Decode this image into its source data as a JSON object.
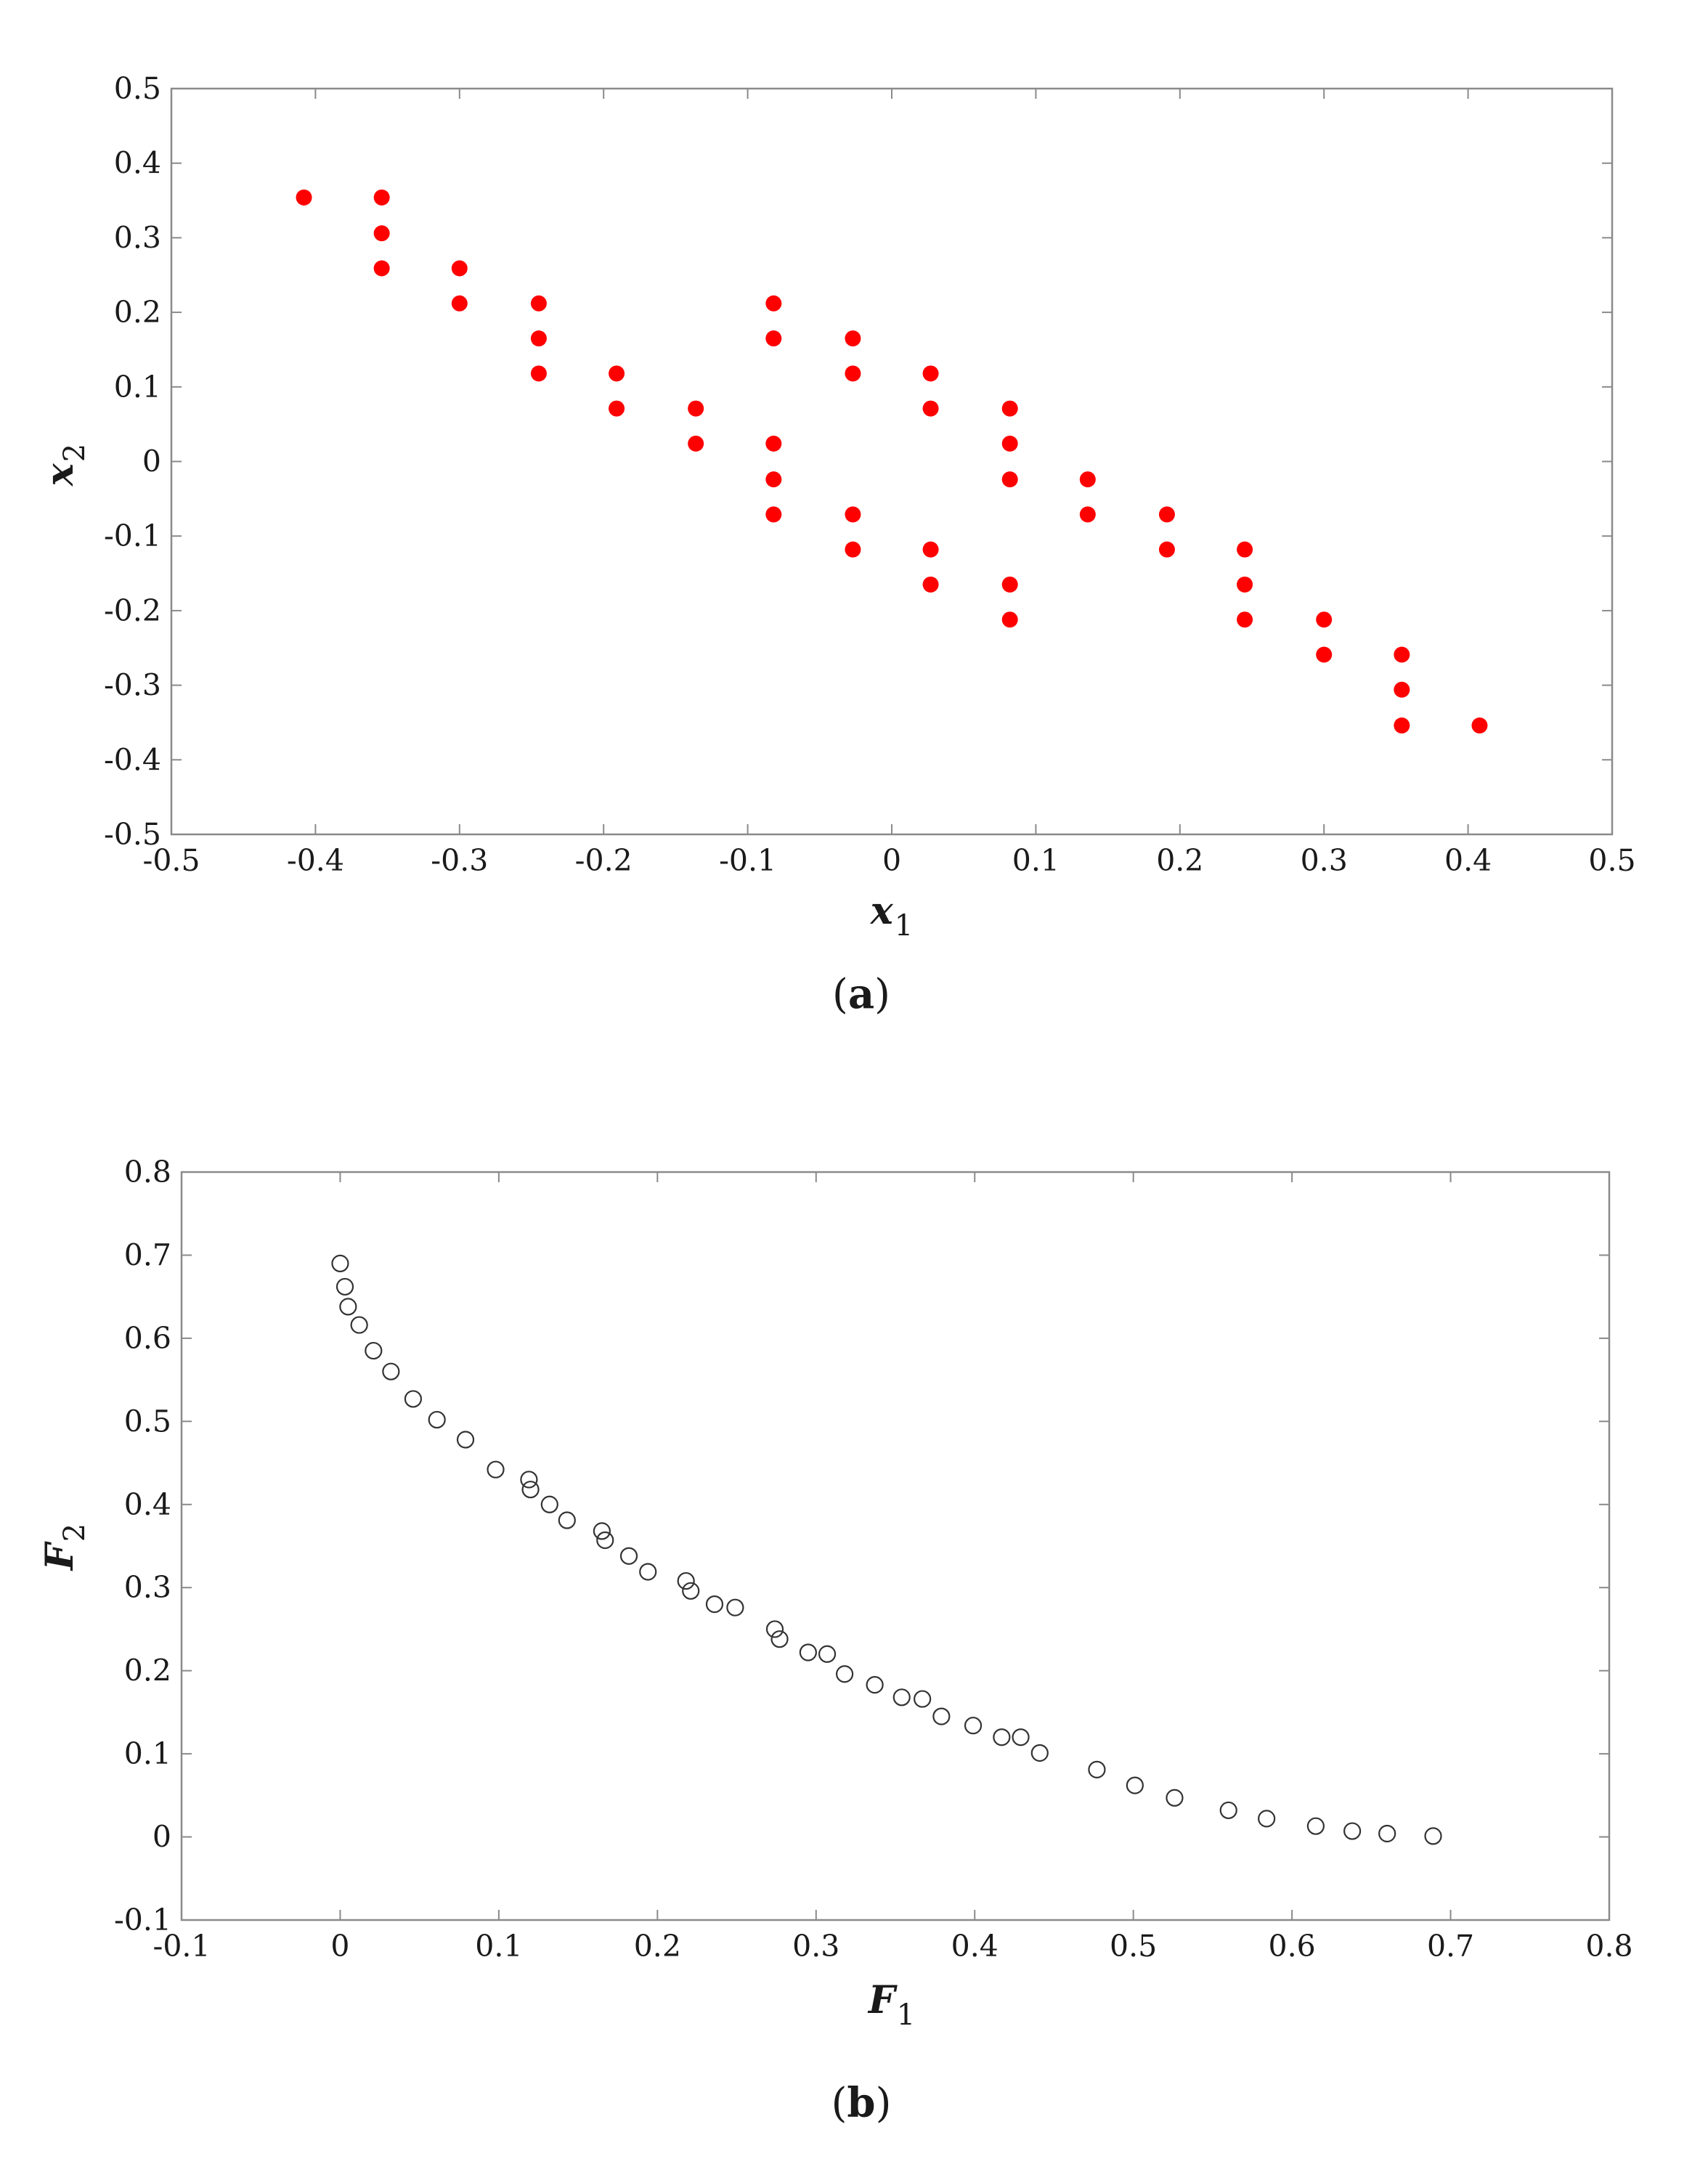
{
  "chart_data": [
    {
      "type": "scatter",
      "panel_label": "a",
      "xlabel": "x",
      "xlabel_sub": "1",
      "ylabel": "x",
      "ylabel_sub": "2",
      "xlim": [
        -0.5,
        0.5
      ],
      "ylim": [
        -0.5,
        0.5
      ],
      "xticks": [
        -0.5,
        -0.4,
        -0.3,
        -0.2,
        -0.1,
        0,
        0.1,
        0.2,
        0.3,
        0.4,
        0.5
      ],
      "yticks": [
        -0.5,
        -0.4,
        -0.3,
        -0.2,
        -0.1,
        0,
        0.1,
        0.2,
        0.3,
        0.4,
        0.5
      ],
      "xtick_labels": [
        "-0.5",
        "-0.4",
        "-0.3",
        "-0.2",
        "-0.1",
        "0",
        "0.1",
        "0.2",
        "0.3",
        "0.4",
        "0.5"
      ],
      "ytick_labels": [
        "-0.5",
        "-0.4",
        "-0.3",
        "-0.2",
        "-0.1",
        "0",
        "0.1",
        "0.2",
        "0.3",
        "0.4",
        "0.5"
      ],
      "grid": false,
      "marker": "filled-circle",
      "marker_color": "#ff0000",
      "points": [
        [
          -0.408,
          0.354
        ],
        [
          -0.354,
          0.354
        ],
        [
          -0.354,
          0.306
        ],
        [
          -0.354,
          0.259
        ],
        [
          -0.3,
          0.259
        ],
        [
          -0.3,
          0.212
        ],
        [
          -0.245,
          0.212
        ],
        [
          -0.245,
          0.165
        ],
        [
          -0.245,
          0.118
        ],
        [
          -0.191,
          0.118
        ],
        [
          -0.191,
          0.071
        ],
        [
          -0.136,
          0.071
        ],
        [
          -0.136,
          0.024
        ],
        [
          -0.082,
          0.212
        ],
        [
          -0.082,
          0.165
        ],
        [
          -0.082,
          0.024
        ],
        [
          -0.082,
          -0.024
        ],
        [
          -0.082,
          -0.071
        ],
        [
          -0.027,
          0.165
        ],
        [
          -0.027,
          0.118
        ],
        [
          -0.027,
          -0.071
        ],
        [
          -0.027,
          -0.118
        ],
        [
          0.027,
          0.118
        ],
        [
          0.027,
          0.071
        ],
        [
          0.027,
          -0.118
        ],
        [
          0.027,
          -0.165
        ],
        [
          0.082,
          0.071
        ],
        [
          0.082,
          0.024
        ],
        [
          0.082,
          -0.024
        ],
        [
          0.082,
          -0.165
        ],
        [
          0.082,
          -0.212
        ],
        [
          0.136,
          -0.024
        ],
        [
          0.136,
          -0.071
        ],
        [
          0.191,
          -0.071
        ],
        [
          0.191,
          -0.118
        ],
        [
          0.245,
          -0.118
        ],
        [
          0.245,
          -0.165
        ],
        [
          0.245,
          -0.212
        ],
        [
          0.3,
          -0.212
        ],
        [
          0.3,
          -0.259
        ],
        [
          0.354,
          -0.259
        ],
        [
          0.354,
          -0.306
        ],
        [
          0.354,
          -0.354
        ],
        [
          0.408,
          -0.354
        ]
      ]
    },
    {
      "type": "scatter",
      "panel_label": "b",
      "xlabel": "F",
      "xlabel_sub": "1",
      "ylabel": "F",
      "ylabel_sub": "2",
      "xlim": [
        -0.1,
        0.8
      ],
      "ylim": [
        -0.1,
        0.8
      ],
      "xticks": [
        -0.1,
        0,
        0.1,
        0.2,
        0.3,
        0.4,
        0.5,
        0.6,
        0.7,
        0.8
      ],
      "yticks": [
        -0.1,
        0,
        0.1,
        0.2,
        0.3,
        0.4,
        0.5,
        0.6,
        0.7,
        0.8
      ],
      "xtick_labels": [
        "-0.1",
        "0",
        "0.1",
        "0.2",
        "0.3",
        "0.4",
        "0.5",
        "0.6",
        "0.7",
        "0.8"
      ],
      "ytick_labels": [
        "-0.1",
        "0",
        "0.1",
        "0.2",
        "0.3",
        "0.4",
        "0.5",
        "0.6",
        "0.7",
        "0.8"
      ],
      "grid": false,
      "marker": "open-circle",
      "marker_color": "#333333",
      "points": [
        [
          0.0,
          0.69
        ],
        [
          0.003,
          0.662
        ],
        [
          0.005,
          0.638
        ],
        [
          0.012,
          0.616
        ],
        [
          0.021,
          0.585
        ],
        [
          0.032,
          0.56
        ],
        [
          0.046,
          0.527
        ],
        [
          0.061,
          0.502
        ],
        [
          0.079,
          0.478
        ],
        [
          0.098,
          0.442
        ],
        [
          0.119,
          0.43
        ],
        [
          0.12,
          0.418
        ],
        [
          0.132,
          0.4
        ],
        [
          0.143,
          0.381
        ],
        [
          0.165,
          0.368
        ],
        [
          0.167,
          0.357
        ],
        [
          0.182,
          0.338
        ],
        [
          0.194,
          0.319
        ],
        [
          0.218,
          0.308
        ],
        [
          0.221,
          0.296
        ],
        [
          0.236,
          0.28
        ],
        [
          0.249,
          0.276
        ],
        [
          0.274,
          0.25
        ],
        [
          0.277,
          0.238
        ],
        [
          0.295,
          0.222
        ],
        [
          0.307,
          0.22
        ],
        [
          0.318,
          0.196
        ],
        [
          0.337,
          0.183
        ],
        [
          0.354,
          0.168
        ],
        [
          0.367,
          0.166
        ],
        [
          0.379,
          0.145
        ],
        [
          0.399,
          0.134
        ],
        [
          0.417,
          0.12
        ],
        [
          0.429,
          0.12
        ],
        [
          0.441,
          0.101
        ],
        [
          0.477,
          0.081
        ],
        [
          0.501,
          0.062
        ],
        [
          0.526,
          0.047
        ],
        [
          0.56,
          0.032
        ],
        [
          0.584,
          0.022
        ],
        [
          0.615,
          0.013
        ],
        [
          0.638,
          0.007
        ],
        [
          0.66,
          0.004
        ],
        [
          0.689,
          0.001
        ]
      ]
    }
  ]
}
